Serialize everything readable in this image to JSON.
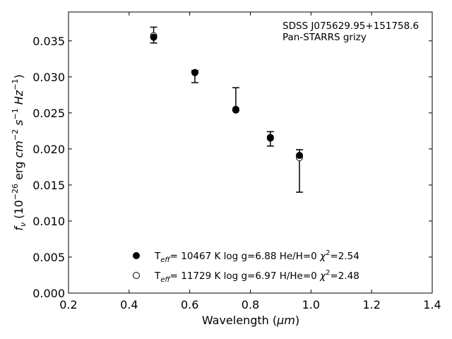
{
  "chart_data": {
    "type": "scatter",
    "xlabel_text": "Wavelength (",
    "xlabel_unit": "μm",
    "xlabel_close": ")",
    "ylabel": {
      "f": "f",
      "nu": "ν",
      "open": " (10",
      "exp26": "−26",
      "erg": " erg ",
      "cm": "cm",
      "cm_exp": "−2",
      "s": " s",
      "s_exp": "−1",
      "hz": " Hz",
      "hz_exp": "−1",
      "close": ")"
    },
    "xlim": [
      0.2,
      1.4
    ],
    "ylim": [
      0.0,
      0.039
    ],
    "xticks": [
      "0.2",
      "0.4",
      "0.6",
      "0.8",
      "1.0",
      "1.2",
      "1.4"
    ],
    "yticks": [
      "0.000",
      "0.005",
      "0.010",
      "0.015",
      "0.020",
      "0.025",
      "0.030",
      "0.035"
    ],
    "annotation": [
      "SDSS J075629.95+151758.6",
      "Pan-STARRS grizy"
    ],
    "observed": [
      {
        "x": 0.481,
        "y": 0.0358,
        "yerr_low": 0.0347,
        "yerr_high": 0.0369
      },
      {
        "x": 0.617,
        "y": 0.0307,
        "yerr_low": 0.0292,
        "yerr_high": 0.0309
      },
      {
        "x": 0.752,
        "y": 0.0257,
        "yerr_low": 0.0253,
        "yerr_high": 0.0285
      },
      {
        "x": 0.866,
        "y": 0.0214,
        "yerr_low": 0.0204,
        "yerr_high": 0.0224
      },
      {
        "x": 0.962,
        "y": 0.0167,
        "yerr_low": 0.014,
        "yerr_high": 0.0199
      }
    ],
    "series": [
      {
        "marker": "filled",
        "label": {
          "t": "T",
          "eff": "eff",
          "rest": "= 10467 K  log g=6.88  He/H=0  ",
          "chi": "χ",
          "two": "2",
          "chi_val": "=2.54"
        },
        "x": [
          0.481,
          0.617,
          0.752,
          0.866,
          0.962
        ],
        "y": [
          0.0355,
          0.0306,
          0.0254,
          0.0215,
          0.0191
        ]
      },
      {
        "marker": "open",
        "label": {
          "t": "T",
          "eff": "eff",
          "rest": "= 11729 K  log g=6.97  H/He=0  ",
          "chi": "χ",
          "two": "2",
          "chi_val": "=2.48"
        },
        "x": [
          0.481,
          0.617,
          0.752,
          0.866,
          0.962
        ],
        "y": [
          0.0357,
          0.0306,
          0.0255,
          0.0216,
          0.0188
        ]
      }
    ]
  }
}
